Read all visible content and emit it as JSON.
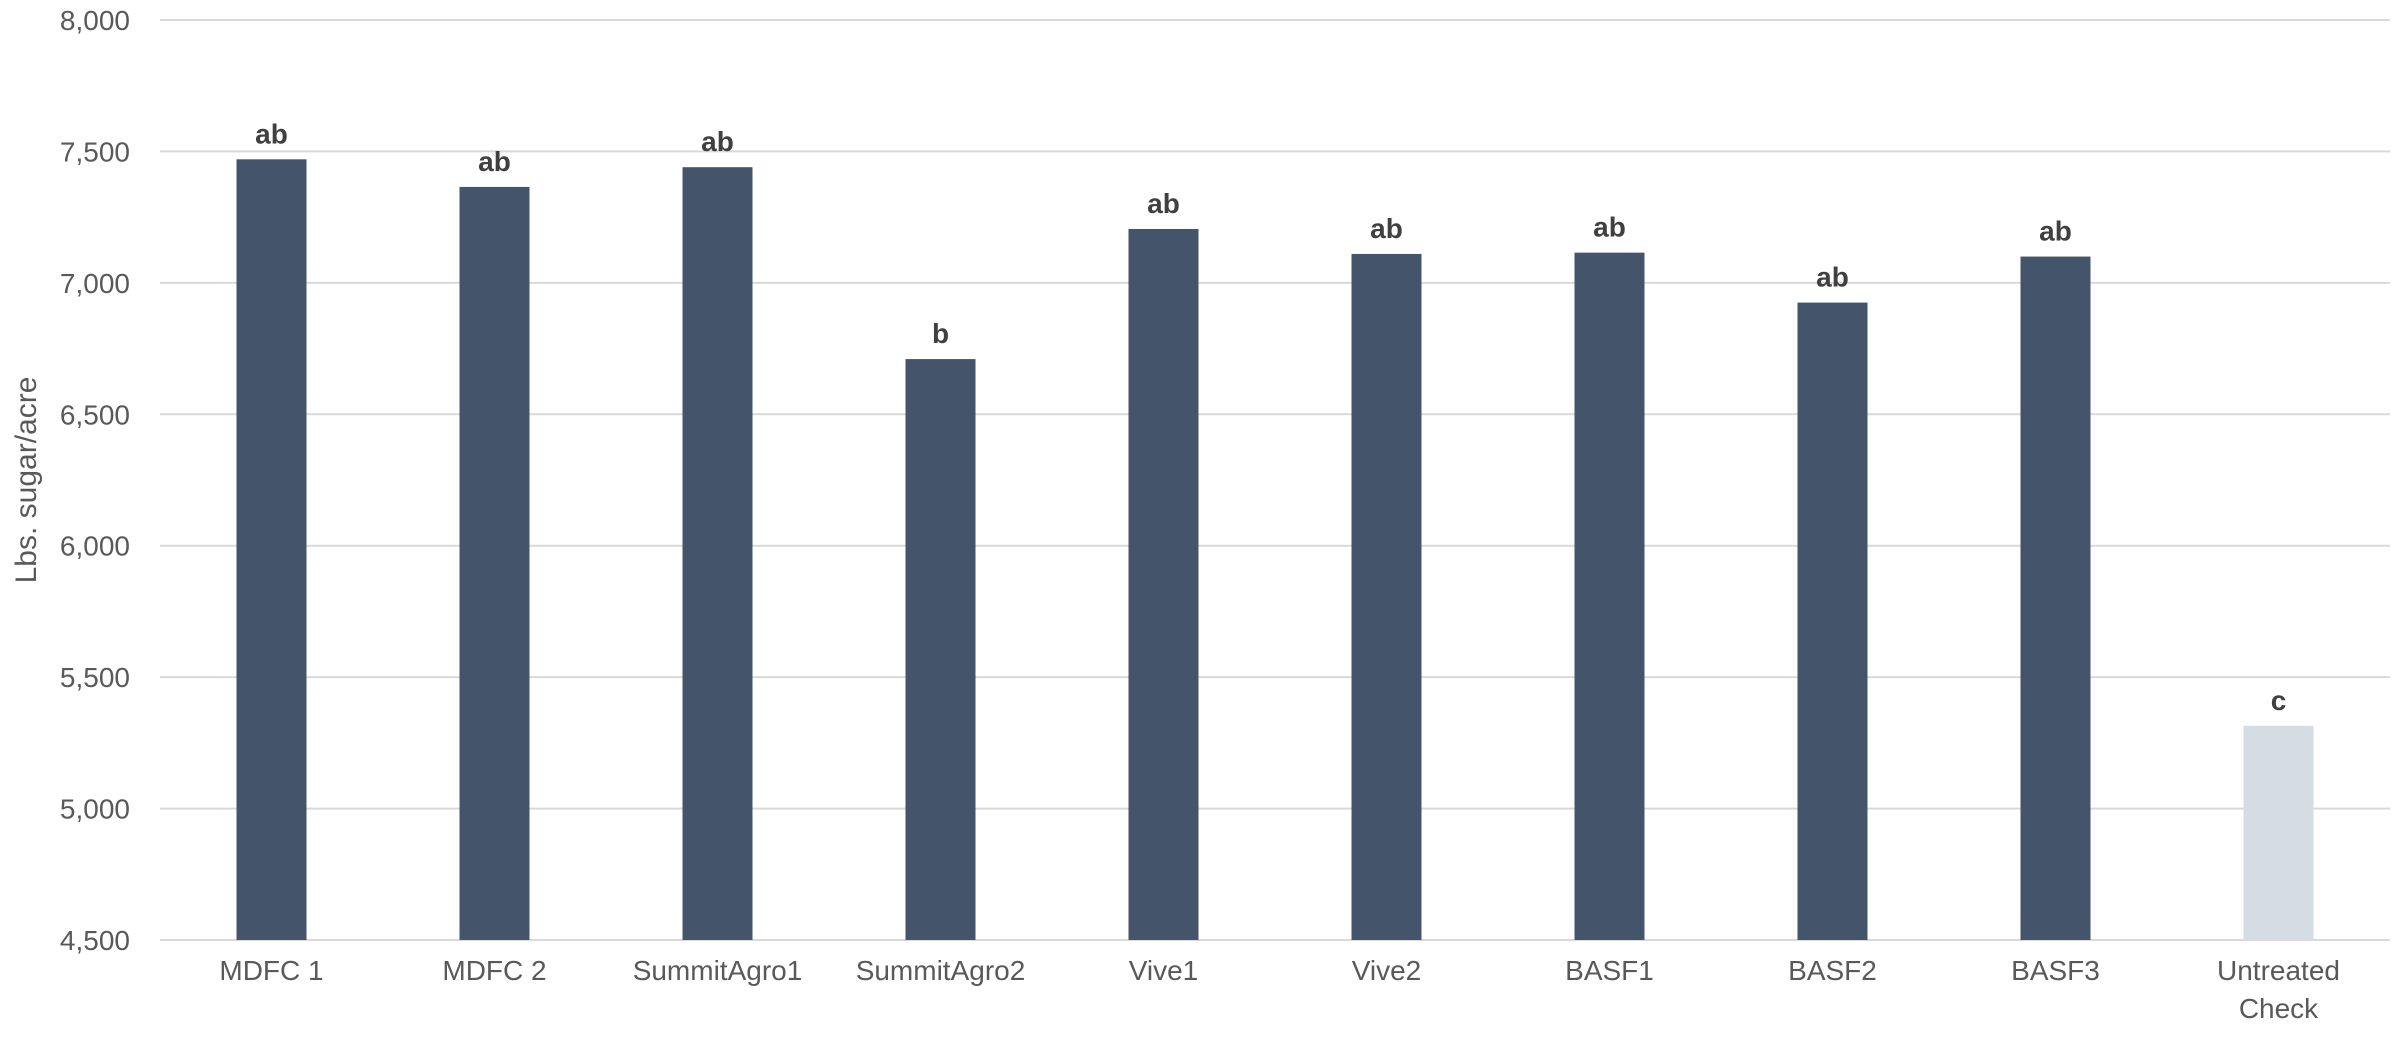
{
  "chart_data": {
    "type": "bar",
    "title": "",
    "xlabel": "",
    "ylabel": "Lbs. sugar/acre",
    "ylim": [
      4500,
      8000
    ],
    "y_ticks": [
      "4,500",
      "5,000",
      "5,500",
      "6,000",
      "6,500",
      "7,000",
      "7,500",
      "8,000"
    ],
    "y_tick_values": [
      4500,
      5000,
      5500,
      6000,
      6500,
      7000,
      7500,
      8000
    ],
    "grid": true,
    "legend": "none",
    "categories": [
      [
        "MDFC 1"
      ],
      [
        "MDFC 2"
      ],
      [
        "SummitAgro1"
      ],
      [
        "SummitAgro2"
      ],
      [
        "Vive1"
      ],
      [
        "Vive2"
      ],
      [
        "BASF1"
      ],
      [
        "BASF2"
      ],
      [
        "BASF3"
      ],
      [
        "Untreated",
        "Check"
      ]
    ],
    "values": [
      7470,
      7365,
      7440,
      6710,
      7205,
      7110,
      7115,
      6925,
      7100,
      5315
    ],
    "data_labels": [
      "ab",
      "ab",
      "ab",
      "b",
      "ab",
      "ab",
      "ab",
      "ab",
      "ab",
      "c"
    ],
    "bar_colors": [
      "#44546a",
      "#44546a",
      "#44546a",
      "#44546a",
      "#44546a",
      "#44546a",
      "#44546a",
      "#44546a",
      "#44546a",
      "#d6dce4"
    ],
    "grid_color": "#d9d9d9",
    "text_color": "#595959"
  }
}
